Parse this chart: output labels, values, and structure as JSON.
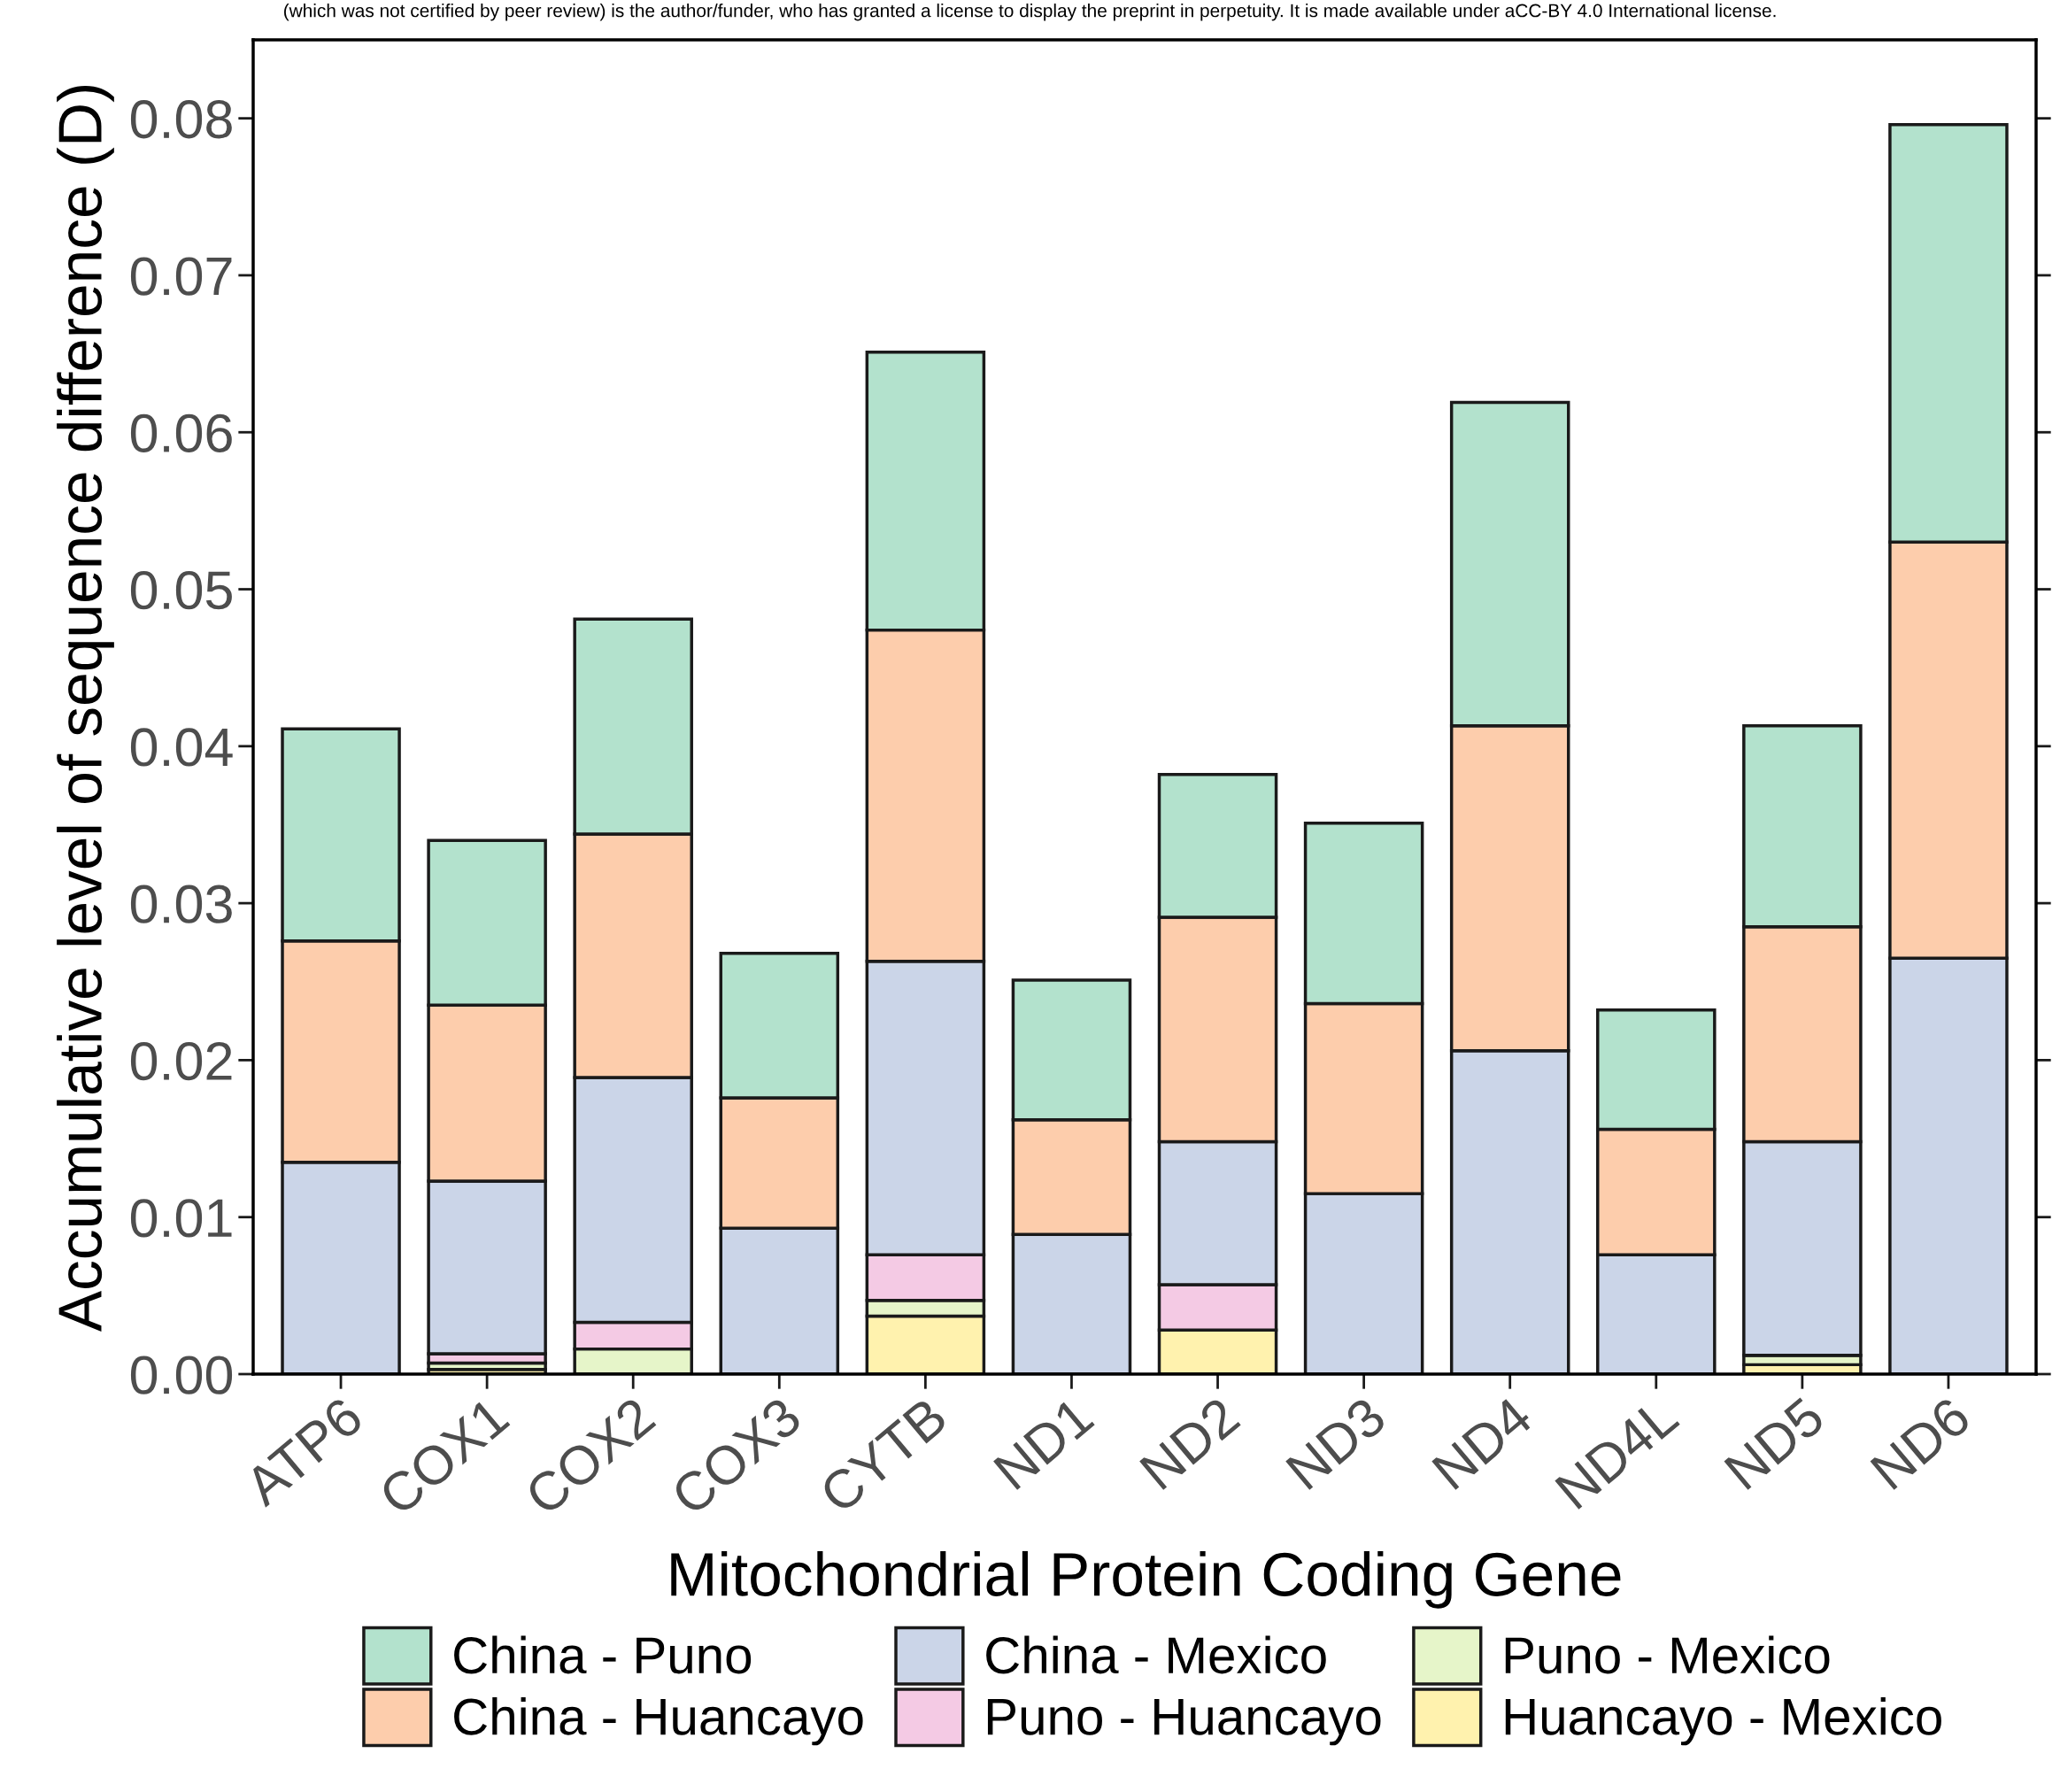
{
  "chart_data": {
    "type": "bar",
    "stacked": true,
    "xlabel": "Mitochondrial Protein Coding Gene",
    "ylabel": "Accumulative level of sequence difference (D)",
    "categories": [
      "ATP6",
      "COX1",
      "COX2",
      "COX3",
      "CYTB",
      "ND1",
      "ND2",
      "ND3",
      "ND4",
      "ND4L",
      "ND5",
      "ND6"
    ],
    "series": [
      {
        "name": "Huancayo - Mexico",
        "color": "#fff2ae",
        "values": [
          0,
          0.0003,
          0,
          0,
          0.0037,
          0,
          0.0028,
          0,
          0,
          0,
          0.0006,
          0
        ]
      },
      {
        "name": "Puno - Mexico",
        "color": "#e6f5c9",
        "values": [
          0,
          0.0004,
          0.0016,
          0,
          0.001,
          0,
          0,
          0,
          0,
          0,
          0.0006,
          0
        ]
      },
      {
        "name": "Puno - Huancayo",
        "color": "#f4cae4",
        "values": [
          0,
          0.0006,
          0.0017,
          0,
          0.0029,
          0,
          0.0029,
          0,
          0,
          0,
          0,
          0
        ]
      },
      {
        "name": "China - Mexico",
        "color": "#cbd5e8",
        "values": [
          0.0135,
          0.011,
          0.0156,
          0.0093,
          0.0187,
          0.0089,
          0.0091,
          0.0115,
          0.0206,
          0.0076,
          0.0136,
          0.0265
        ]
      },
      {
        "name": "China - Huancayo",
        "color": "#fdcdac",
        "values": [
          0.0141,
          0.0112,
          0.0155,
          0.0083,
          0.0211,
          0.0073,
          0.0143,
          0.0121,
          0.0207,
          0.008,
          0.0137,
          0.0265
        ]
      },
      {
        "name": "China - Puno",
        "color": "#b3e2cd",
        "values": [
          0.0135,
          0.0105,
          0.0137,
          0.0092,
          0.0177,
          0.0089,
          0.0091,
          0.0115,
          0.0206,
          0.0076,
          0.0128,
          0.0266
        ]
      }
    ],
    "ylim": [
      0,
      0.085
    ],
    "yticks": [
      {
        "value": 0,
        "label": "0.00"
      },
      0.01,
      0.02,
      0.03,
      0.04,
      0.05,
      0.06,
      0.07,
      0.08
    ],
    "grid": false,
    "legend": "bottom",
    "annotations": [
      "(which was not certified by peer review) is the author/funder, who has granted a license to display the preprint in perpetuity. It is made available under aCC-BY 4.0 International license."
    ]
  }
}
